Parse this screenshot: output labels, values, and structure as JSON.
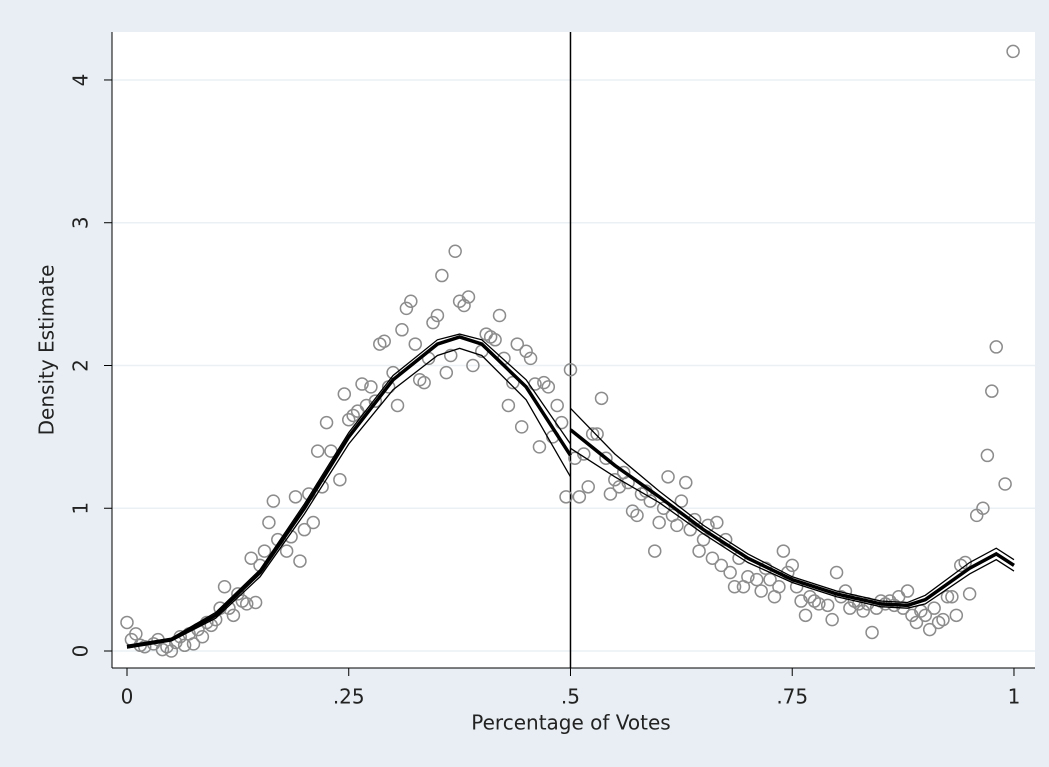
{
  "chart_data": {
    "type": "scatter",
    "x_label": "Percentage of Votes",
    "y_label": "Density Estimate",
    "xlim": [
      -0.0169,
      1.0237
    ],
    "ylim": [
      -0.119,
      4.336
    ],
    "xticks": [
      0,
      {
        "value": 0.25,
        "label": ".25"
      },
      {
        "value": 0.5,
        "label": ".5"
      },
      {
        "value": 0.75,
        "label": ".75"
      },
      1
    ],
    "yticks": [
      0,
      1,
      2,
      3,
      4
    ],
    "grid": true,
    "cutoff": 0.5,
    "point_color": "#8c8c8c",
    "x": [
      0,
      0.005,
      0.01,
      0.015,
      0.02,
      0.03,
      0.035,
      0.04,
      0.045,
      0.05,
      0.055,
      0.06,
      0.065,
      0.07,
      0.075,
      0.08,
      0.085,
      0.09,
      0.095,
      0.1,
      0.105,
      0.11,
      0.115,
      0.12,
      0.125,
      0.13,
      0.135,
      0.14,
      0.145,
      0.15,
      0.155,
      0.16,
      0.165,
      0.17,
      0.18,
      0.185,
      0.19,
      0.195,
      0.2,
      0.205,
      0.21,
      0.215,
      0.22,
      0.225,
      0.23,
      0.24,
      0.245,
      0.25,
      0.255,
      0.26,
      0.265,
      0.27,
      0.275,
      0.28,
      0.285,
      0.29,
      0.295,
      0.3,
      0.305,
      0.31,
      0.315,
      0.32,
      0.325,
      0.33,
      0.335,
      0.34,
      0.345,
      0.35,
      0.355,
      0.36,
      0.365,
      0.37,
      0.375,
      0.38,
      0.385,
      0.39,
      0.4,
      0.405,
      0.41,
      0.415,
      0.42,
      0.425,
      0.43,
      0.435,
      0.44,
      0.445,
      0.45,
      0.455,
      0.46,
      0.465,
      0.47,
      0.475,
      0.48,
      0.485,
      0.49,
      0.495,
      0.5,
      0.505,
      0.51,
      0.515,
      0.52,
      0.525,
      0.53,
      0.535,
      0.54,
      0.545,
      0.55,
      0.555,
      0.56,
      0.565,
      0.57,
      0.575,
      0.58,
      0.585,
      0.59,
      0.595,
      0.6,
      0.605,
      0.61,
      0.615,
      0.62,
      0.625,
      0.63,
      0.635,
      0.64,
      0.645,
      0.65,
      0.655,
      0.66,
      0.665,
      0.67,
      0.675,
      0.68,
      0.685,
      0.69,
      0.695,
      0.7,
      0.71,
      0.715,
      0.72,
      0.725,
      0.73,
      0.735,
      0.74,
      0.745,
      0.75,
      0.755,
      0.76,
      0.765,
      0.77,
      0.775,
      0.78,
      0.79,
      0.795,
      0.8,
      0.805,
      0.81,
      0.815,
      0.82,
      0.825,
      0.83,
      0.835,
      0.84,
      0.845,
      0.85,
      0.855,
      0.86,
      0.865,
      0.87,
      0.875,
      0.88,
      0.885,
      0.89,
      0.895,
      0.9,
      0.905,
      0.91,
      0.915,
      0.92,
      0.925,
      0.93,
      0.935,
      0.94,
      0.945,
      0.95,
      0.958,
      0.965,
      0.97,
      0.975,
      0.98,
      0.99,
      0.999
    ],
    "y": [
      0.2,
      0.08,
      0.12,
      0.04,
      0.03,
      0.05,
      0.08,
      0.01,
      0.03,
      0.0,
      0.06,
      0.1,
      0.04,
      0.12,
      0.05,
      0.15,
      0.1,
      0.2,
      0.18,
      0.22,
      0.3,
      0.45,
      0.3,
      0.25,
      0.4,
      0.35,
      0.33,
      0.65,
      0.34,
      0.6,
      0.7,
      0.9,
      1.05,
      0.78,
      0.7,
      0.8,
      1.08,
      0.63,
      0.85,
      1.1,
      0.9,
      1.4,
      1.15,
      1.6,
      1.4,
      1.2,
      1.8,
      1.62,
      1.65,
      1.68,
      1.87,
      1.72,
      1.85,
      1.75,
      2.15,
      2.17,
      1.85,
      1.95,
      1.72,
      2.25,
      2.4,
      2.45,
      2.15,
      1.9,
      1.88,
      2.05,
      2.3,
      2.35,
      2.63,
      1.95,
      2.07,
      2.8,
      2.45,
      2.42,
      2.48,
      2.0,
      2.1,
      2.22,
      2.2,
      2.18,
      2.35,
      2.05,
      1.72,
      1.88,
      2.15,
      1.57,
      2.1,
      2.05,
      1.87,
      1.43,
      1.88,
      1.85,
      1.5,
      1.72,
      1.6,
      1.08,
      1.97,
      1.35,
      1.08,
      1.38,
      1.15,
      1.52,
      1.52,
      1.77,
      1.35,
      1.1,
      1.2,
      1.15,
      1.25,
      1.18,
      0.98,
      0.95,
      1.1,
      1.12,
      1.05,
      0.7,
      0.9,
      1.0,
      1.22,
      0.95,
      0.88,
      1.05,
      1.18,
      0.85,
      0.92,
      0.7,
      0.78,
      0.88,
      0.65,
      0.9,
      0.6,
      0.78,
      0.55,
      0.45,
      0.65,
      0.45,
      0.52,
      0.5,
      0.42,
      0.58,
      0.5,
      0.38,
      0.45,
      0.7,
      0.55,
      0.6,
      0.45,
      0.35,
      0.25,
      0.38,
      0.35,
      0.33,
      0.32,
      0.22,
      0.55,
      0.38,
      0.42,
      0.3,
      0.35,
      0.33,
      0.28,
      0.33,
      0.13,
      0.3,
      0.35,
      0.33,
      0.35,
      0.32,
      0.38,
      0.3,
      0.42,
      0.25,
      0.2,
      0.28,
      0.25,
      0.15,
      0.3,
      0.2,
      0.22,
      0.38,
      0.38,
      0.25,
      0.6,
      0.62,
      0.4,
      0.95,
      1.0,
      1.37,
      1.82,
      2.13,
      1.17,
      4.2
    ],
    "fit_lines": [
      {
        "color": "#000000",
        "x": [
          0,
          0.05,
          0.1,
          0.15,
          0.2,
          0.25,
          0.3,
          0.35,
          0.375,
          0.4,
          0.45,
          0.5
        ],
        "values": [
          0.03,
          0.08,
          0.25,
          0.55,
          1.0,
          1.5,
          1.9,
          2.15,
          2.2,
          2.15,
          1.85,
          1.37
        ]
      },
      {
        "color": "#000000",
        "x": [
          0.5,
          0.55,
          0.6,
          0.65,
          0.7,
          0.75,
          0.8,
          0.85,
          0.88,
          0.9,
          0.95,
          0.98,
          1
        ],
        "values": [
          1.55,
          1.3,
          1.08,
          0.85,
          0.65,
          0.5,
          0.4,
          0.33,
          0.32,
          0.36,
          0.58,
          0.68,
          0.6
        ]
      }
    ],
    "ci_lines": [
      {
        "color": "#000000",
        "x": [
          0,
          0.05,
          0.1,
          0.15,
          0.2,
          0.25,
          0.3,
          0.35,
          0.375,
          0.4,
          0.45,
          0.5
        ],
        "values": [
          0.04,
          0.09,
          0.27,
          0.57,
          1.03,
          1.53,
          1.93,
          2.18,
          2.22,
          2.18,
          1.9,
          1.45
        ]
      },
      {
        "color": "#000000",
        "x": [
          0,
          0.05,
          0.1,
          0.15,
          0.2,
          0.25,
          0.3,
          0.35,
          0.375,
          0.4,
          0.45,
          0.5
        ],
        "values": [
          0.02,
          0.07,
          0.23,
          0.52,
          0.96,
          1.45,
          1.83,
          2.07,
          2.12,
          2.07,
          1.76,
          1.22
        ]
      },
      {
        "color": "#000000",
        "x": [
          0.5,
          0.55,
          0.6,
          0.65,
          0.7,
          0.75,
          0.8,
          0.85,
          0.88,
          0.9,
          0.95,
          0.98,
          1
        ],
        "values": [
          1.7,
          1.38,
          1.12,
          0.88,
          0.68,
          0.52,
          0.42,
          0.35,
          0.34,
          0.39,
          0.62,
          0.72,
          0.64
        ]
      },
      {
        "color": "#000000",
        "x": [
          0.5,
          0.55,
          0.6,
          0.65,
          0.7,
          0.75,
          0.8,
          0.85,
          0.88,
          0.9,
          0.95,
          0.98,
          1
        ],
        "values": [
          1.42,
          1.22,
          1.04,
          0.82,
          0.62,
          0.48,
          0.38,
          0.31,
          0.3,
          0.33,
          0.54,
          0.64,
          0.56
        ]
      }
    ]
  }
}
